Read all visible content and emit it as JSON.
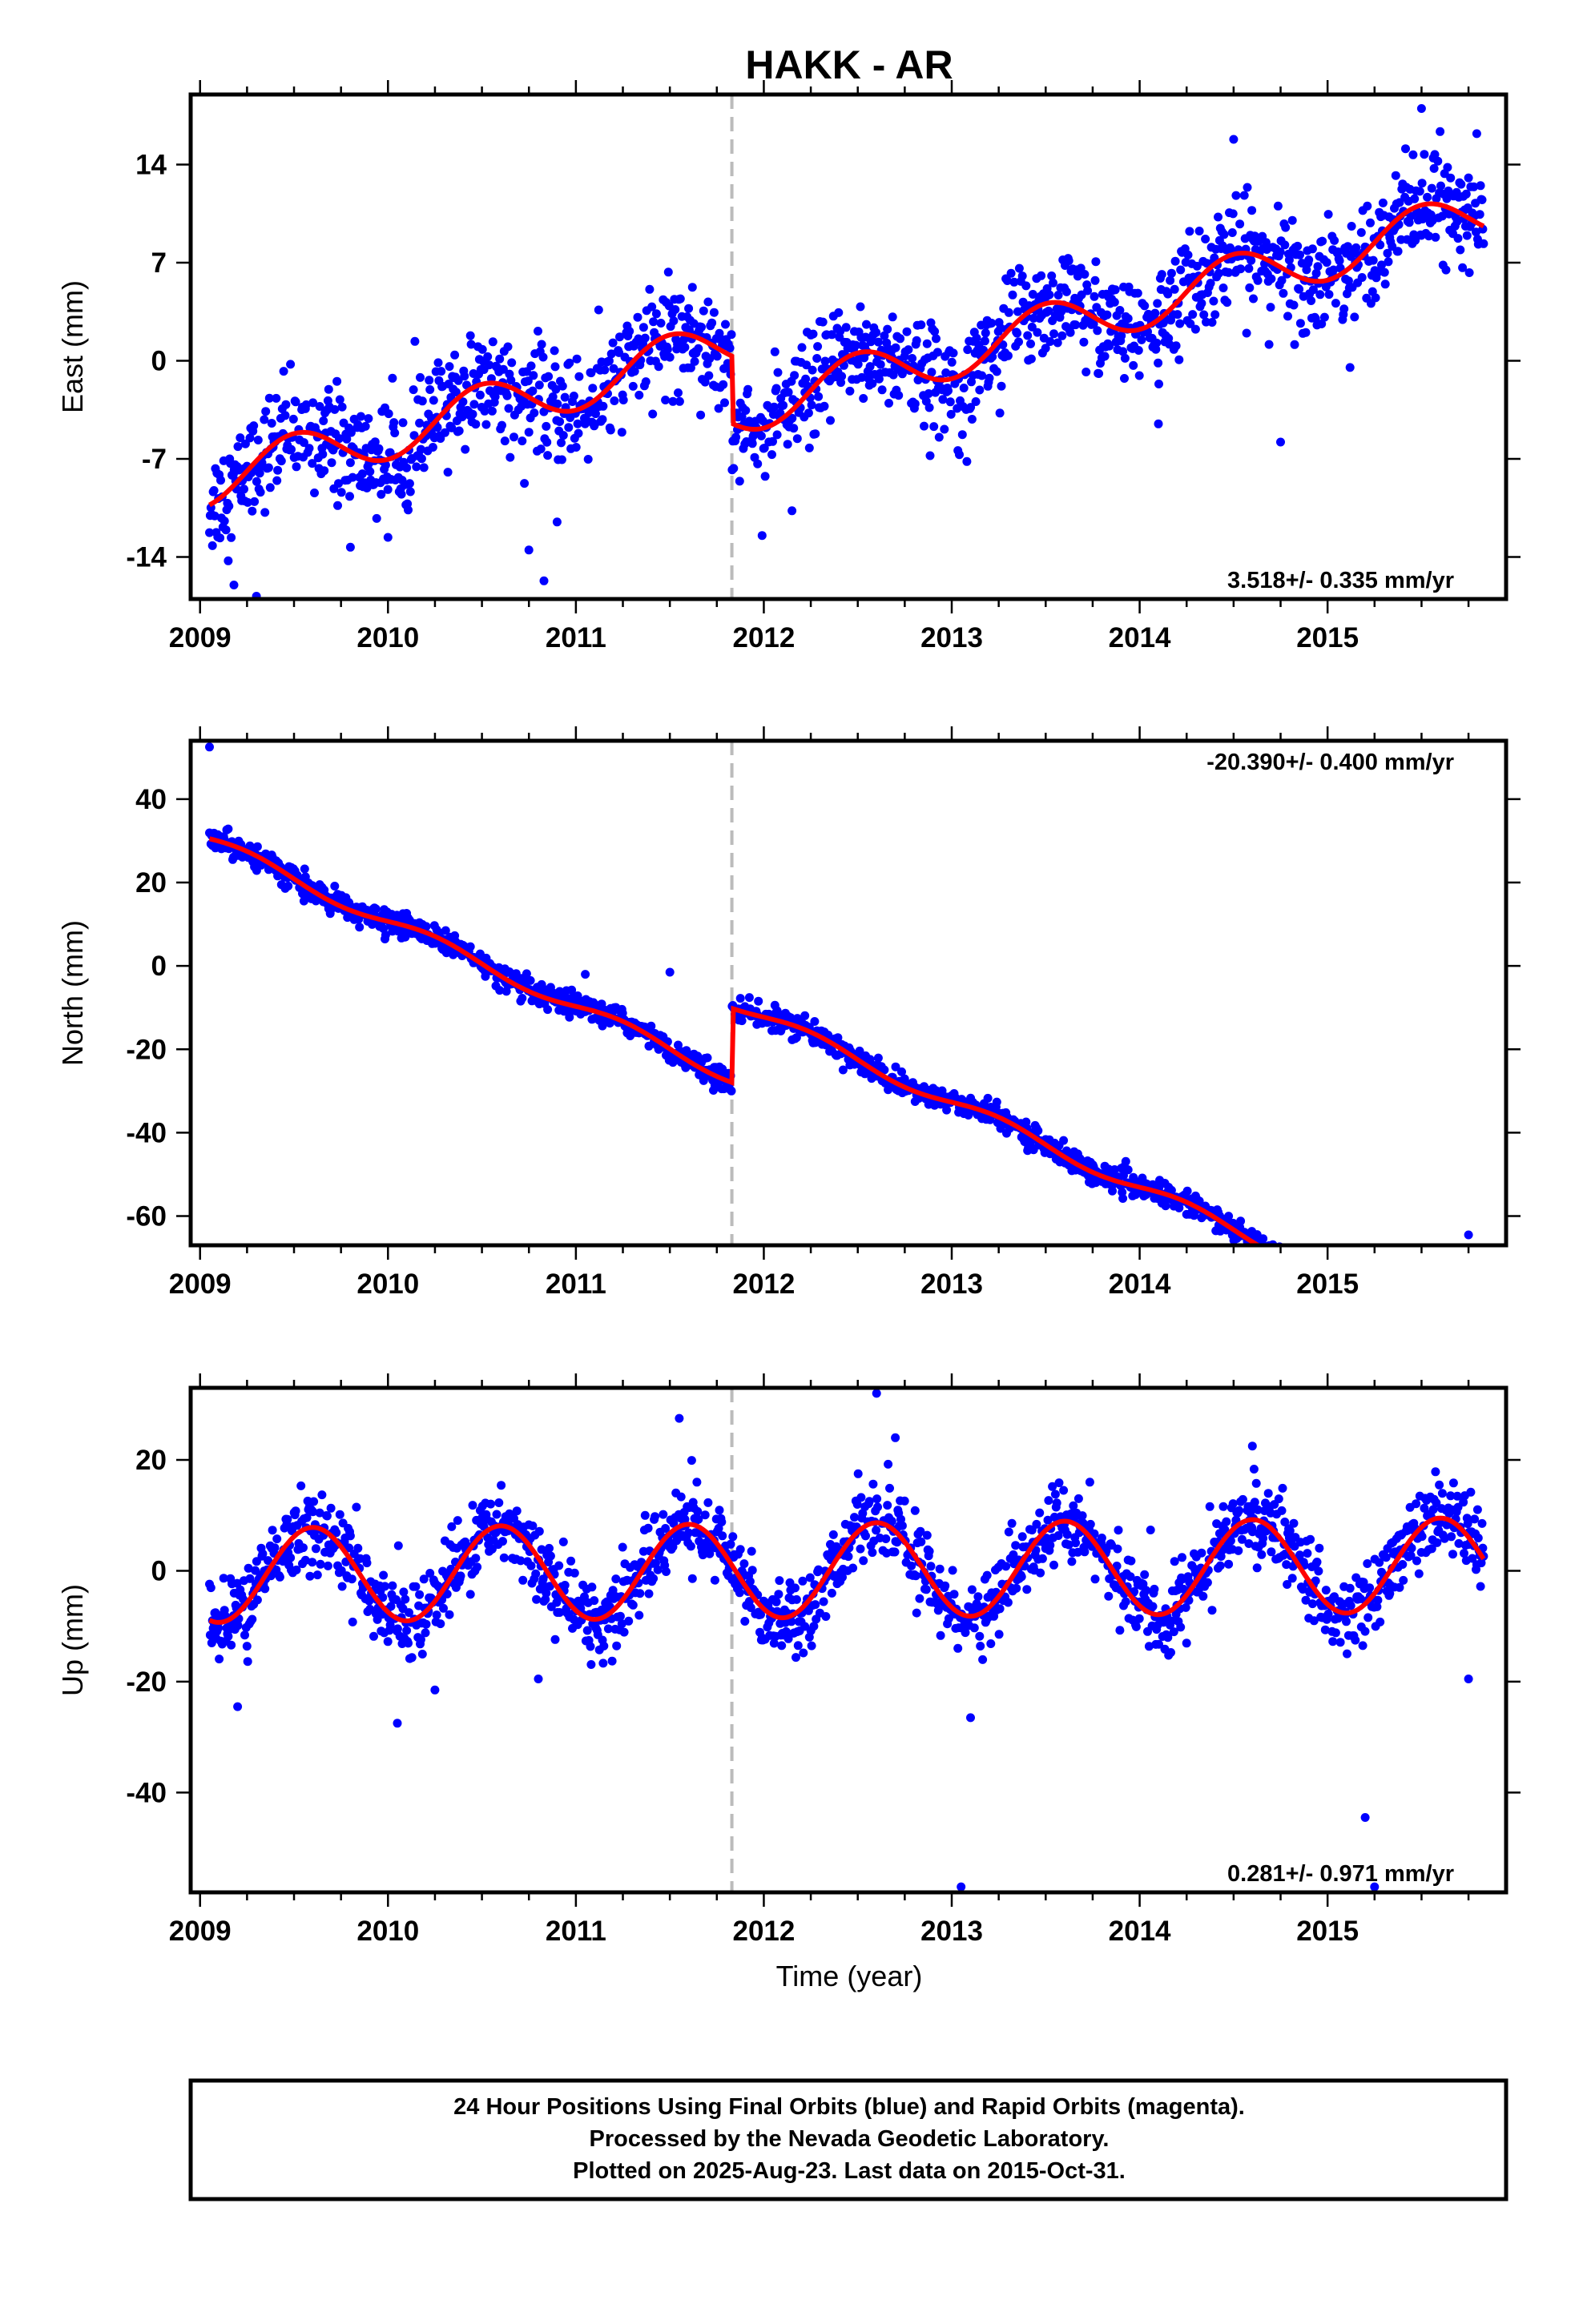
{
  "title": "HAKK - AR",
  "x_label": "Time (year)",
  "caption": {
    "line1": "24 Hour Positions Using Final Orbits (blue) and Rapid Orbits (magenta).",
    "line2": "Processed by the Nevada Geodetic Laboratory.",
    "line3": "Plotted on 2025-Aug-23. Last data on 2015-Oct-31."
  },
  "colors": {
    "points": "#0000ff",
    "model": "#ff0000",
    "offset_line": "#bbbbbb",
    "frame": "#000000"
  },
  "chart_data": [
    {
      "type": "scatter",
      "component": "east",
      "ylabel": "East (mm)",
      "rate_label": "3.518+/- 0.335 mm/yr",
      "rate_position": "bottom-right",
      "xlim": [
        2008.95,
        2015.95
      ],
      "ylim": [
        -17,
        19
      ],
      "xticks": [
        2009,
        2010,
        2011,
        2012,
        2013,
        2014,
        2015
      ],
      "xtick_labels": [
        "2009",
        "2010",
        "2011",
        "2012",
        "2013",
        "2014",
        "2015"
      ],
      "yticks": [
        -14,
        -7,
        0,
        7,
        14
      ],
      "ytick_labels": [
        "-14",
        "-7",
        "0",
        "7",
        "14"
      ],
      "offset_epoch": 2011.83,
      "data_range": [
        2009.05,
        2015.83
      ],
      "model": {
        "rate_mm_per_yr": 3.518,
        "intercept_mm_at_2012": -3.0,
        "offset_mm": -4.8,
        "annual_amplitude_mm": 1.8,
        "annual_peak_fraction_of_year": 0.5
      },
      "scatter_sigma_mm": 1.9,
      "outliers": [
        [
          2009.18,
          -16.0
        ],
        [
          2009.3,
          -16.8
        ],
        [
          2009.8,
          -13.3
        ],
        [
          2010.0,
          -12.6
        ],
        [
          2010.75,
          -13.5
        ],
        [
          2010.83,
          -15.7
        ],
        [
          2010.9,
          -11.5
        ],
        [
          2012.15,
          -10.7
        ],
        [
          2014.1,
          -4.5
        ],
        [
          2014.75,
          -5.8
        ],
        [
          2015.5,
          18.0
        ],
        [
          2014.5,
          15.8
        ]
      ]
    },
    {
      "type": "scatter",
      "component": "north",
      "ylabel": "North (mm)",
      "rate_label": "-20.390+/- 0.400 mm/yr",
      "rate_position": "top-right",
      "xlim": [
        2008.95,
        2015.95
      ],
      "ylim": [
        -67,
        54
      ],
      "xticks": [
        2009,
        2010,
        2011,
        2012,
        2013,
        2014,
        2015
      ],
      "xtick_labels": [
        "2009",
        "2010",
        "2011",
        "2012",
        "2013",
        "2014",
        "2015"
      ],
      "yticks": [
        -60,
        -40,
        -20,
        0,
        20,
        40
      ],
      "ytick_labels": [
        "-60",
        "-40",
        "-20",
        "0",
        "20",
        "40"
      ],
      "offset_epoch": 2011.83,
      "data_range": [
        2009.05,
        2015.83
      ],
      "model": {
        "rate_mm_per_yr": -20.39,
        "intercept_mm_at_2012": -12.3,
        "offset_mm": 17.8,
        "annual_amplitude_mm": 1.5,
        "annual_peak_fraction_of_year": 0.25
      },
      "scatter_sigma_mm": 1.4,
      "outliers": [
        [
          2011.05,
          -2.0
        ],
        [
          2011.5,
          -1.5
        ],
        [
          2015.75,
          -64.5
        ],
        [
          2009.05,
          52.5
        ]
      ]
    },
    {
      "type": "scatter",
      "component": "up",
      "ylabel": "Up (mm)",
      "rate_label": "0.281+/- 0.971 mm/yr",
      "rate_position": "bottom-right",
      "xlim": [
        2008.95,
        2015.95
      ],
      "ylim": [
        -58,
        33
      ],
      "xticks": [
        2009,
        2010,
        2011,
        2012,
        2013,
        2014,
        2015
      ],
      "xtick_labels": [
        "2009",
        "2010",
        "2011",
        "2012",
        "2013",
        "2014",
        "2015"
      ],
      "yticks": [
        -40,
        -20,
        0,
        20
      ],
      "ytick_labels": [
        "-40",
        "-20",
        "0",
        "20"
      ],
      "offset_epoch": 2011.83,
      "data_range": [
        2009.05,
        2015.83
      ],
      "model": {
        "rate_mm_per_yr": 0.281,
        "intercept_mm_at_2012": 0.0,
        "offset_mm": 0.0,
        "annual_amplitude_mm": 8.5,
        "annual_peak_fraction_of_year": 0.6
      },
      "scatter_sigma_mm": 3.5,
      "outliers": [
        [
          2009.2,
          -24.5
        ],
        [
          2010.05,
          -27.5
        ],
        [
          2010.25,
          -21.5
        ],
        [
          2010.8,
          -19.5
        ],
        [
          2012.6,
          32.0
        ],
        [
          2012.7,
          24.0
        ],
        [
          2013.05,
          -57.0
        ],
        [
          2013.1,
          -26.5
        ],
        [
          2014.6,
          22.5
        ],
        [
          2015.2,
          -44.5
        ],
        [
          2015.25,
          -57.0
        ],
        [
          2015.75,
          -19.5
        ],
        [
          2011.55,
          27.5
        ]
      ]
    }
  ]
}
